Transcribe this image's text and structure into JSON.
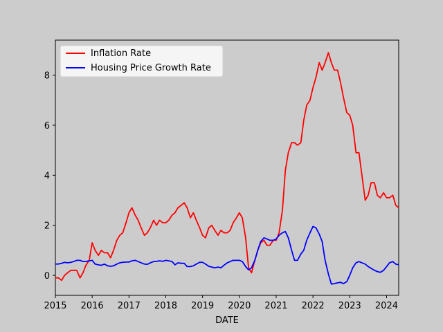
{
  "chart_data": {
    "type": "line",
    "xlabel": "DATE",
    "ylabel": "",
    "xlim": [
      2015.0,
      2024.33
    ],
    "ylim": [
      -0.8,
      9.4
    ],
    "x_ticks": [
      2015,
      2016,
      2017,
      2018,
      2019,
      2020,
      2021,
      2022,
      2023,
      2024
    ],
    "y_ticks": [
      0,
      2,
      4,
      6,
      8
    ],
    "grid": false,
    "legend_position": "top-left",
    "series": [
      {
        "name": "Inflation Rate",
        "color": "#ff0000",
        "points": [
          [
            2015.0,
            -0.1
          ],
          [
            2015.08,
            -0.1
          ],
          [
            2015.17,
            -0.2
          ],
          [
            2015.25,
            0.0
          ],
          [
            2015.33,
            0.1
          ],
          [
            2015.42,
            0.2
          ],
          [
            2015.5,
            0.2
          ],
          [
            2015.58,
            0.2
          ],
          [
            2015.67,
            -0.1
          ],
          [
            2015.75,
            0.1
          ],
          [
            2015.83,
            0.4
          ],
          [
            2015.92,
            0.6
          ],
          [
            2016.0,
            1.3
          ],
          [
            2016.08,
            1.0
          ],
          [
            2016.17,
            0.8
          ],
          [
            2016.25,
            1.0
          ],
          [
            2016.33,
            0.9
          ],
          [
            2016.42,
            0.9
          ],
          [
            2016.5,
            0.7
          ],
          [
            2016.58,
            1.0
          ],
          [
            2016.67,
            1.4
          ],
          [
            2016.75,
            1.6
          ],
          [
            2016.83,
            1.7
          ],
          [
            2016.92,
            2.1
          ],
          [
            2017.0,
            2.5
          ],
          [
            2017.08,
            2.7
          ],
          [
            2017.17,
            2.4
          ],
          [
            2017.25,
            2.2
          ],
          [
            2017.33,
            1.9
          ],
          [
            2017.42,
            1.6
          ],
          [
            2017.5,
            1.7
          ],
          [
            2017.58,
            1.9
          ],
          [
            2017.67,
            2.2
          ],
          [
            2017.75,
            2.0
          ],
          [
            2017.83,
            2.2
          ],
          [
            2017.92,
            2.1
          ],
          [
            2018.0,
            2.1
          ],
          [
            2018.08,
            2.2
          ],
          [
            2018.17,
            2.4
          ],
          [
            2018.25,
            2.5
          ],
          [
            2018.33,
            2.7
          ],
          [
            2018.42,
            2.8
          ],
          [
            2018.5,
            2.9
          ],
          [
            2018.58,
            2.7
          ],
          [
            2018.67,
            2.3
          ],
          [
            2018.75,
            2.5
          ],
          [
            2018.83,
            2.2
          ],
          [
            2018.92,
            1.9
          ],
          [
            2019.0,
            1.6
          ],
          [
            2019.08,
            1.5
          ],
          [
            2019.17,
            1.9
          ],
          [
            2019.25,
            2.0
          ],
          [
            2019.33,
            1.8
          ],
          [
            2019.42,
            1.6
          ],
          [
            2019.5,
            1.8
          ],
          [
            2019.58,
            1.7
          ],
          [
            2019.67,
            1.7
          ],
          [
            2019.75,
            1.8
          ],
          [
            2019.83,
            2.1
          ],
          [
            2019.92,
            2.3
          ],
          [
            2020.0,
            2.5
          ],
          [
            2020.08,
            2.3
          ],
          [
            2020.17,
            1.5
          ],
          [
            2020.25,
            0.3
          ],
          [
            2020.33,
            0.1
          ],
          [
            2020.42,
            0.6
          ],
          [
            2020.5,
            1.0
          ],
          [
            2020.58,
            1.3
          ],
          [
            2020.67,
            1.4
          ],
          [
            2020.75,
            1.2
          ],
          [
            2020.83,
            1.2
          ],
          [
            2020.92,
            1.4
          ],
          [
            2021.0,
            1.4
          ],
          [
            2021.08,
            1.7
          ],
          [
            2021.17,
            2.6
          ],
          [
            2021.25,
            4.2
          ],
          [
            2021.33,
            4.9
          ],
          [
            2021.42,
            5.3
          ],
          [
            2021.5,
            5.3
          ],
          [
            2021.58,
            5.2
          ],
          [
            2021.67,
            5.3
          ],
          [
            2021.75,
            6.2
          ],
          [
            2021.83,
            6.8
          ],
          [
            2021.92,
            7.0
          ],
          [
            2022.0,
            7.5
          ],
          [
            2022.08,
            7.9
          ],
          [
            2022.17,
            8.5
          ],
          [
            2022.25,
            8.2
          ],
          [
            2022.33,
            8.5
          ],
          [
            2022.42,
            8.9
          ],
          [
            2022.5,
            8.5
          ],
          [
            2022.58,
            8.2
          ],
          [
            2022.67,
            8.2
          ],
          [
            2022.75,
            7.7
          ],
          [
            2022.83,
            7.1
          ],
          [
            2022.92,
            6.5
          ],
          [
            2023.0,
            6.4
          ],
          [
            2023.08,
            6.0
          ],
          [
            2023.17,
            4.9
          ],
          [
            2023.25,
            4.9
          ],
          [
            2023.33,
            4.0
          ],
          [
            2023.42,
            3.0
          ],
          [
            2023.5,
            3.2
          ],
          [
            2023.58,
            3.7
          ],
          [
            2023.67,
            3.7
          ],
          [
            2023.75,
            3.2
          ],
          [
            2023.83,
            3.1
          ],
          [
            2023.92,
            3.3
          ],
          [
            2024.0,
            3.1
          ],
          [
            2024.08,
            3.1
          ],
          [
            2024.17,
            3.2
          ],
          [
            2024.25,
            2.8
          ],
          [
            2024.33,
            2.7
          ]
        ]
      },
      {
        "name": "Housing Price Growth Rate",
        "color": "#0000ff",
        "points": [
          [
            2015.0,
            0.45
          ],
          [
            2015.08,
            0.45
          ],
          [
            2015.17,
            0.48
          ],
          [
            2015.25,
            0.52
          ],
          [
            2015.33,
            0.5
          ],
          [
            2015.42,
            0.52
          ],
          [
            2015.5,
            0.55
          ],
          [
            2015.58,
            0.6
          ],
          [
            2015.67,
            0.6
          ],
          [
            2015.75,
            0.55
          ],
          [
            2015.83,
            0.55
          ],
          [
            2015.92,
            0.58
          ],
          [
            2016.0,
            0.6
          ],
          [
            2016.08,
            0.45
          ],
          [
            2016.17,
            0.42
          ],
          [
            2016.25,
            0.4
          ],
          [
            2016.33,
            0.45
          ],
          [
            2016.42,
            0.38
          ],
          [
            2016.5,
            0.36
          ],
          [
            2016.58,
            0.38
          ],
          [
            2016.67,
            0.45
          ],
          [
            2016.75,
            0.5
          ],
          [
            2016.83,
            0.52
          ],
          [
            2016.92,
            0.53
          ],
          [
            2017.0,
            0.53
          ],
          [
            2017.08,
            0.58
          ],
          [
            2017.17,
            0.6
          ],
          [
            2017.25,
            0.55
          ],
          [
            2017.33,
            0.5
          ],
          [
            2017.42,
            0.45
          ],
          [
            2017.5,
            0.44
          ],
          [
            2017.58,
            0.5
          ],
          [
            2017.67,
            0.55
          ],
          [
            2017.75,
            0.56
          ],
          [
            2017.83,
            0.58
          ],
          [
            2017.92,
            0.56
          ],
          [
            2018.0,
            0.6
          ],
          [
            2018.08,
            0.58
          ],
          [
            2018.17,
            0.55
          ],
          [
            2018.25,
            0.42
          ],
          [
            2018.33,
            0.5
          ],
          [
            2018.42,
            0.48
          ],
          [
            2018.5,
            0.48
          ],
          [
            2018.58,
            0.35
          ],
          [
            2018.67,
            0.35
          ],
          [
            2018.75,
            0.38
          ],
          [
            2018.83,
            0.45
          ],
          [
            2018.92,
            0.52
          ],
          [
            2019.0,
            0.52
          ],
          [
            2019.08,
            0.45
          ],
          [
            2019.17,
            0.36
          ],
          [
            2019.25,
            0.33
          ],
          [
            2019.33,
            0.3
          ],
          [
            2019.42,
            0.33
          ],
          [
            2019.5,
            0.3
          ],
          [
            2019.58,
            0.4
          ],
          [
            2019.67,
            0.5
          ],
          [
            2019.75,
            0.55
          ],
          [
            2019.83,
            0.6
          ],
          [
            2019.92,
            0.6
          ],
          [
            2020.0,
            0.6
          ],
          [
            2020.08,
            0.55
          ],
          [
            2020.17,
            0.35
          ],
          [
            2020.25,
            0.22
          ],
          [
            2020.33,
            0.3
          ],
          [
            2020.42,
            0.6
          ],
          [
            2020.5,
            1.0
          ],
          [
            2020.58,
            1.35
          ],
          [
            2020.67,
            1.5
          ],
          [
            2020.75,
            1.45
          ],
          [
            2020.83,
            1.4
          ],
          [
            2020.92,
            1.4
          ],
          [
            2021.0,
            1.45
          ],
          [
            2021.08,
            1.6
          ],
          [
            2021.17,
            1.7
          ],
          [
            2021.25,
            1.75
          ],
          [
            2021.33,
            1.5
          ],
          [
            2021.42,
            1.0
          ],
          [
            2021.5,
            0.6
          ],
          [
            2021.58,
            0.6
          ],
          [
            2021.67,
            0.85
          ],
          [
            2021.75,
            1.0
          ],
          [
            2021.83,
            1.4
          ],
          [
            2021.92,
            1.7
          ],
          [
            2022.0,
            1.95
          ],
          [
            2022.08,
            1.9
          ],
          [
            2022.17,
            1.65
          ],
          [
            2022.25,
            1.35
          ],
          [
            2022.33,
            0.6
          ],
          [
            2022.42,
            0.05
          ],
          [
            2022.5,
            -0.35
          ],
          [
            2022.58,
            -0.33
          ],
          [
            2022.67,
            -0.3
          ],
          [
            2022.75,
            -0.28
          ],
          [
            2022.83,
            -0.33
          ],
          [
            2022.92,
            -0.25
          ],
          [
            2023.0,
            0.0
          ],
          [
            2023.08,
            0.3
          ],
          [
            2023.17,
            0.5
          ],
          [
            2023.25,
            0.55
          ],
          [
            2023.33,
            0.5
          ],
          [
            2023.42,
            0.45
          ],
          [
            2023.5,
            0.35
          ],
          [
            2023.58,
            0.28
          ],
          [
            2023.67,
            0.2
          ],
          [
            2023.75,
            0.15
          ],
          [
            2023.83,
            0.12
          ],
          [
            2023.92,
            0.2
          ],
          [
            2024.0,
            0.35
          ],
          [
            2024.08,
            0.5
          ],
          [
            2024.17,
            0.55
          ],
          [
            2024.25,
            0.45
          ],
          [
            2024.33,
            0.42
          ]
        ]
      }
    ]
  }
}
